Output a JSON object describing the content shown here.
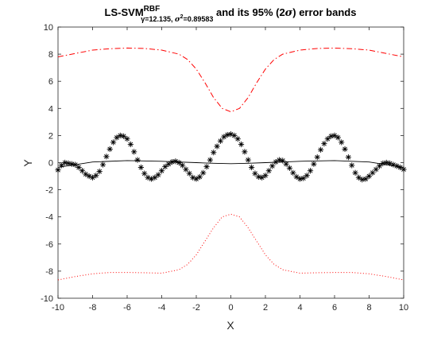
{
  "chart_data": {
    "type": "line",
    "title": {
      "main": "LS-SVM",
      "superscript": "RBF",
      "subscript_prefix": "γ=12.135, ",
      "subscript_sigma": "σ",
      "subscript_exp": "2",
      "subscript_suffix": "=0.89583",
      "suffix_pre": " and its 95% (2",
      "suffix_sigma": "σ",
      "suffix_post": ") error bands"
    },
    "xlabel": "X",
    "ylabel": "Y",
    "xlim": [
      -10,
      10
    ],
    "ylim": [
      -10,
      10
    ],
    "xticks": [
      -10,
      -8,
      -6,
      -4,
      -2,
      0,
      2,
      4,
      6,
      8,
      10
    ],
    "yticks": [
      -10,
      -8,
      -6,
      -4,
      -2,
      0,
      2,
      4,
      6,
      8,
      10
    ],
    "grid": false,
    "series": [
      {
        "role": "training-data",
        "style": "asterisk",
        "color": "#000000",
        "x": [
          -10.0,
          -9.8,
          -9.6,
          -9.4,
          -9.2,
          -9.0,
          -8.8,
          -8.6,
          -8.4,
          -8.2,
          -8.0,
          -7.8,
          -7.6,
          -7.4,
          -7.2,
          -7.0,
          -6.8,
          -6.6,
          -6.4,
          -6.2,
          -6.0,
          -5.8,
          -5.6,
          -5.4,
          -5.2,
          -5.0,
          -4.8,
          -4.6,
          -4.4,
          -4.2,
          -4.0,
          -3.8,
          -3.6,
          -3.4,
          -3.2,
          -3.0,
          -2.8,
          -2.6,
          -2.4,
          -2.2,
          -2.0,
          -1.8,
          -1.6,
          -1.4,
          -1.2,
          -1.0,
          -0.8,
          -0.6,
          -0.4,
          -0.2,
          0.0,
          0.2,
          0.4,
          0.6,
          0.8,
          1.0,
          1.2,
          1.4,
          1.6,
          1.8,
          2.0,
          2.2,
          2.4,
          2.6,
          2.8,
          3.0,
          3.2,
          3.4,
          3.6,
          3.8,
          4.0,
          4.2,
          4.4,
          4.6,
          4.8,
          5.0,
          5.2,
          5.4,
          5.6,
          5.8,
          6.0,
          6.2,
          6.4,
          6.6,
          6.8,
          7.0,
          7.2,
          7.4,
          7.6,
          7.8,
          8.0,
          8.2,
          8.4,
          8.6,
          8.8,
          9.0,
          9.2,
          9.4,
          9.6,
          9.8,
          10.0
        ],
        "y": [
          -0.54,
          -0.2,
          0.0,
          -0.05,
          -0.1,
          -0.15,
          -0.35,
          -0.6,
          -0.85,
          -1.0,
          -1.1,
          -0.95,
          -0.65,
          -0.15,
          0.45,
          1.0,
          1.5,
          1.85,
          2.0,
          1.95,
          1.75,
          1.35,
          0.8,
          0.2,
          -0.35,
          -0.8,
          -1.1,
          -1.2,
          -1.1,
          -0.9,
          -0.6,
          -0.3,
          -0.1,
          0.05,
          0.1,
          0.0,
          -0.2,
          -0.5,
          -0.8,
          -1.1,
          -1.2,
          -1.05,
          -0.75,
          -0.3,
          0.2,
          0.75,
          1.2,
          1.6,
          1.9,
          2.05,
          2.1,
          2.0,
          1.75,
          1.35,
          0.8,
          0.2,
          -0.35,
          -0.8,
          -1.05,
          -1.1,
          -0.95,
          -0.6,
          -0.25,
          0.05,
          0.2,
          0.15,
          -0.1,
          -0.4,
          -0.75,
          -1.05,
          -1.2,
          -1.15,
          -0.95,
          -0.6,
          -0.1,
          0.4,
          0.95,
          1.4,
          1.75,
          1.95,
          2.0,
          1.85,
          1.5,
          1.0,
          0.4,
          -0.2,
          -0.75,
          -1.1,
          -1.25,
          -1.2,
          -1.0,
          -0.75,
          -0.5,
          -0.25,
          -0.05,
          0.0,
          -0.05,
          -0.15,
          -0.25,
          -0.35,
          -0.5
        ]
      },
      {
        "role": "ls-svm-estimate",
        "style": "solid",
        "color": "#000000",
        "x": [
          -10,
          -8,
          -6,
          -4,
          -3,
          -2,
          -1,
          0,
          1,
          2,
          3,
          4,
          6,
          8,
          10
        ],
        "y": [
          -0.35,
          0.05,
          0.15,
          0.1,
          0.05,
          0.0,
          -0.05,
          -0.08,
          -0.05,
          0.0,
          0.05,
          0.1,
          0.15,
          0.05,
          -0.35
        ]
      },
      {
        "role": "upper-error-band",
        "style": "dashdot",
        "color": "#ff0000",
        "x": [
          -10,
          -9,
          -8,
          -7,
          -6,
          -5,
          -4,
          -3,
          -2.5,
          -2,
          -1.5,
          -1,
          -0.5,
          0,
          0.5,
          1,
          1.5,
          2,
          2.5,
          3,
          4,
          5,
          6,
          7,
          8,
          9,
          10
        ],
        "y": [
          7.8,
          8.05,
          8.3,
          8.4,
          8.45,
          8.42,
          8.3,
          8.0,
          7.6,
          6.9,
          5.9,
          4.8,
          4.0,
          3.75,
          4.0,
          4.8,
          5.9,
          6.9,
          7.6,
          8.0,
          8.3,
          8.42,
          8.45,
          8.4,
          8.3,
          8.05,
          7.8
        ]
      },
      {
        "role": "lower-error-band",
        "style": "dotted",
        "color": "#ff0000",
        "x": [
          -10,
          -9,
          -8,
          -7,
          -6,
          -5,
          -4,
          -3,
          -2.5,
          -2,
          -1.5,
          -1,
          -0.5,
          0,
          0.5,
          1,
          1.5,
          2,
          2.5,
          3,
          4,
          5,
          6,
          7,
          8,
          9,
          10
        ],
        "y": [
          -8.65,
          -8.4,
          -8.2,
          -8.1,
          -8.1,
          -8.12,
          -8.15,
          -7.9,
          -7.5,
          -6.8,
          -5.8,
          -4.8,
          -4.0,
          -3.8,
          -4.0,
          -4.8,
          -5.8,
          -6.8,
          -7.5,
          -7.9,
          -8.15,
          -8.12,
          -8.1,
          -8.1,
          -8.2,
          -8.4,
          -8.65
        ]
      }
    ]
  }
}
